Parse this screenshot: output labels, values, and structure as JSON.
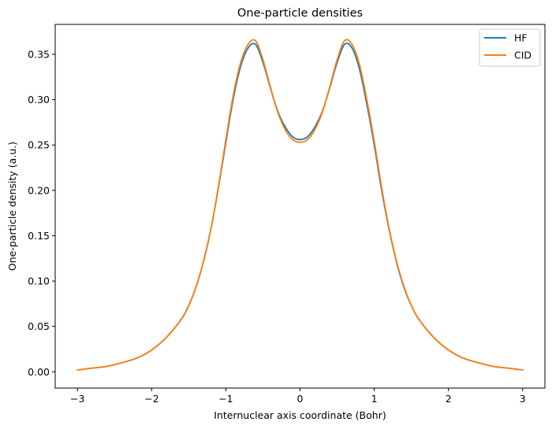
{
  "chart_data": {
    "type": "line",
    "title": "One-particle densities",
    "xlabel": "Internuclear axis coordinate (Bohr)",
    "ylabel": "One-particle density (a.u.)",
    "xlim": [
      -3.3,
      3.3
    ],
    "ylim": [
      -0.018,
      0.383
    ],
    "x_ticks": [
      -3,
      -2,
      -1,
      0,
      1,
      2,
      3
    ],
    "x_tick_labels": [
      "−3",
      "−2",
      "−1",
      "0",
      "1",
      "2",
      "3"
    ],
    "y_ticks": [
      0.0,
      0.05,
      0.1,
      0.15,
      0.2,
      0.25,
      0.3,
      0.35
    ],
    "y_tick_labels": [
      "0.00",
      "0.05",
      "0.10",
      "0.15",
      "0.20",
      "0.25",
      "0.30",
      "0.35"
    ],
    "grid": false,
    "legend_position": "top-right",
    "x": [
      -3.0,
      -2.8,
      -2.6,
      -2.4,
      -2.2,
      -2.0,
      -1.8,
      -1.6,
      -1.5,
      -1.4,
      -1.3,
      -1.2,
      -1.1,
      -1.0,
      -0.9,
      -0.8,
      -0.7,
      -0.6,
      -0.5,
      -0.4,
      -0.3,
      -0.2,
      -0.1,
      0.0,
      0.1,
      0.2,
      0.3,
      0.4,
      0.5,
      0.6,
      0.7,
      0.8,
      0.9,
      1.0,
      1.1,
      1.2,
      1.3,
      1.4,
      1.5,
      1.6,
      1.8,
      2.0,
      2.2,
      2.4,
      2.6,
      2.8,
      3.0
    ],
    "series": [
      {
        "name": "HF",
        "color": "#1f77b4",
        "values": [
          0.002,
          0.004,
          0.006,
          0.01,
          0.015,
          0.024,
          0.038,
          0.058,
          0.073,
          0.094,
          0.122,
          0.158,
          0.203,
          0.253,
          0.301,
          0.337,
          0.357,
          0.361,
          0.341,
          0.313,
          0.287,
          0.27,
          0.259,
          0.256,
          0.259,
          0.27,
          0.287,
          0.313,
          0.341,
          0.361,
          0.357,
          0.334,
          0.295,
          0.25,
          0.2,
          0.157,
          0.121,
          0.093,
          0.073,
          0.058,
          0.038,
          0.024,
          0.015,
          0.01,
          0.006,
          0.004,
          0.002
        ]
      },
      {
        "name": "CID",
        "color": "#ff7f0e",
        "values": [
          0.002,
          0.004,
          0.006,
          0.01,
          0.015,
          0.024,
          0.038,
          0.058,
          0.073,
          0.094,
          0.122,
          0.158,
          0.204,
          0.256,
          0.305,
          0.341,
          0.361,
          0.365,
          0.344,
          0.314,
          0.286,
          0.267,
          0.256,
          0.253,
          0.256,
          0.267,
          0.286,
          0.314,
          0.344,
          0.365,
          0.361,
          0.339,
          0.3,
          0.254,
          0.203,
          0.158,
          0.122,
          0.094,
          0.073,
          0.058,
          0.038,
          0.024,
          0.015,
          0.01,
          0.006,
          0.004,
          0.002
        ]
      }
    ]
  }
}
